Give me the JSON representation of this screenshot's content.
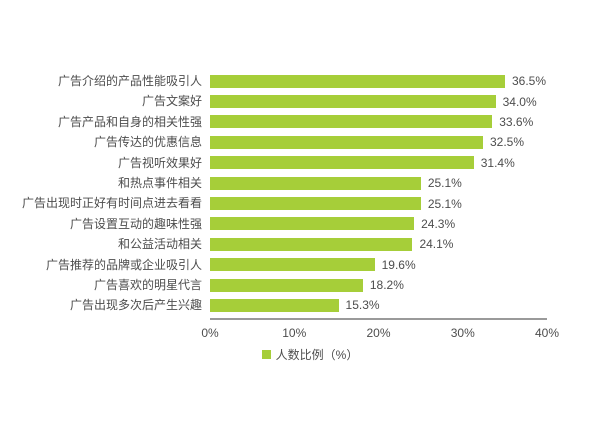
{
  "chart_data": {
    "type": "bar",
    "orientation": "horizontal",
    "title": "",
    "categories": [
      "广告介绍的产品性能吸引人",
      "广告文案好",
      "广告产品和自身的相关性强",
      "广告传达的优惠信息",
      "广告视听效果好",
      "和热点事件相关",
      "广告出现时正好有时间点进去看看",
      "广告设置互动的趣味性强",
      "和公益活动相关",
      "广告推荐的品牌或企业吸引人",
      "广告喜欢的明星代言",
      "广告出现多次后产生兴趣"
    ],
    "values": [
      36.5,
      34.0,
      33.6,
      32.5,
      31.4,
      25.1,
      25.1,
      24.3,
      24.1,
      19.6,
      18.2,
      15.3
    ],
    "value_labels": [
      "36.5%",
      "34.0%",
      "33.6%",
      "32.5%",
      "31.4%",
      "25.1%",
      "25.1%",
      "24.3%",
      "24.1%",
      "19.6%",
      "18.2%",
      "15.3%"
    ],
    "xlabel": "",
    "ylabel": "",
    "xlim": [
      0,
      40
    ],
    "xticks": [
      "0%",
      "10%",
      "20%",
      "30%",
      "40%"
    ],
    "xtick_positions_pct": [
      0,
      25,
      50,
      75,
      100
    ],
    "grid": false,
    "legend": "人数比例（%）",
    "legend_position": "bottom-center",
    "bar_color": "#a6ce39"
  },
  "colors": {
    "bar": "#a6ce39",
    "text": "#4d4d4d",
    "axis_line": "#9a9a9a",
    "background": "#ffffff"
  }
}
